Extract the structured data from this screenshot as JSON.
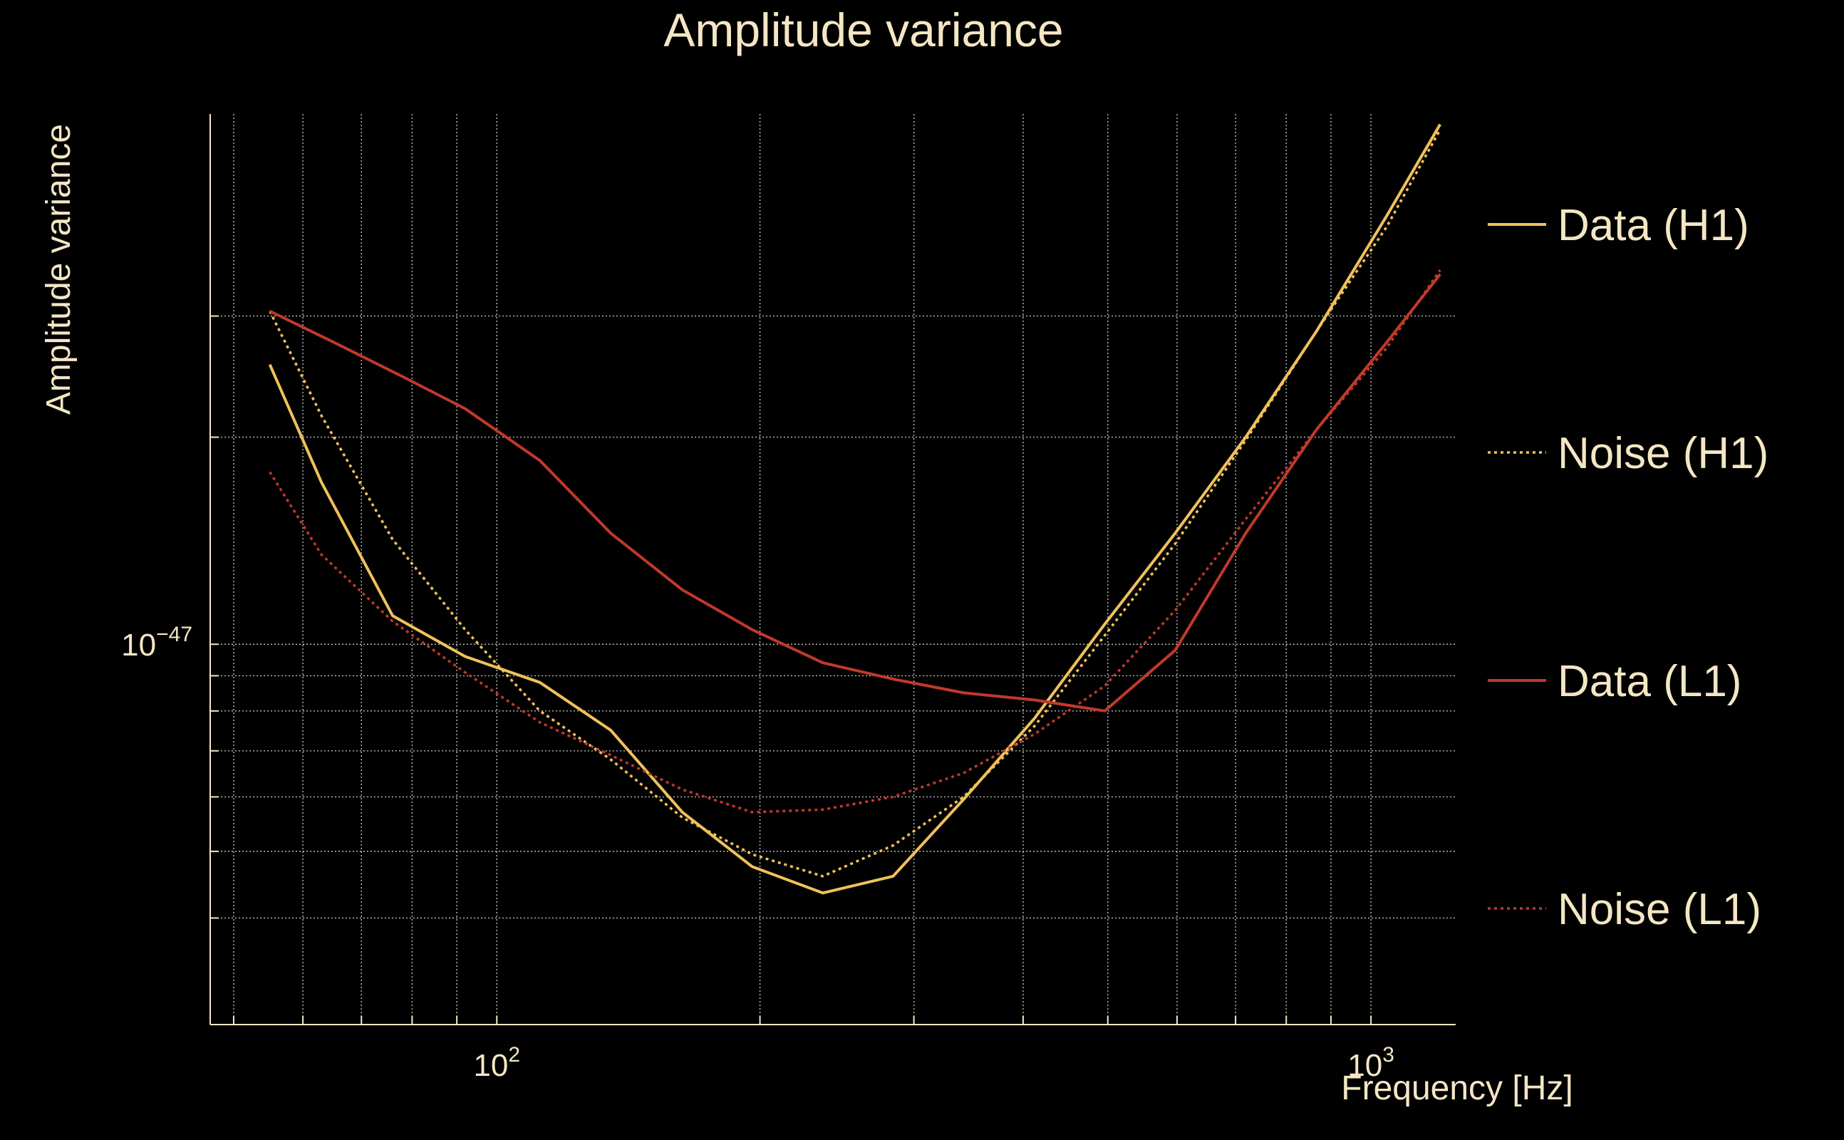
{
  "colors": {
    "background": "#000000",
    "text": "#f5e6c4",
    "grid": "#bdbdbd",
    "data_h1": "#f0c15a",
    "noise_h1": "#f0c15a",
    "data_l1": "#c0392b",
    "noise_l1": "#c0392b"
  },
  "chart_data": {
    "type": "line",
    "title": "Amplitude variance",
    "xlabel": "Frequency [Hz]",
    "ylabel": "Amplitude variance",
    "xscale": "log",
    "yscale": "log",
    "xlim": [
      47,
      1250
    ],
    "ylim": [
      2.8e-48,
      5.9e-47
    ],
    "grid": true,
    "legend_position": "right",
    "x_tick_labels": [
      {
        "value": 100,
        "base": "10",
        "exp": "2"
      },
      {
        "value": 1000,
        "base": "10",
        "exp": "3"
      }
    ],
    "y_tick_labels": [
      {
        "value": 1e-47,
        "base": "10",
        "exp": "−47"
      }
    ],
    "y_gridlines": [
      4e-48,
      5e-48,
      6e-48,
      7e-48,
      8e-48,
      9e-48,
      1e-47,
      2e-47,
      3e-47
    ],
    "x_gridlines": [
      50,
      60,
      70,
      80,
      90,
      100,
      200,
      300,
      400,
      500,
      600,
      700,
      800,
      900,
      1000
    ],
    "series": [
      {
        "name": "Data (H1)",
        "style": "solid",
        "color": "#f0c15a",
        "x": [
          55,
          63,
          76,
          92,
          112,
          135,
          163,
          196,
          236,
          284,
          342,
          412,
          496,
          597,
          719,
          866,
          1043,
          1200
        ],
        "y": [
          2.55e-47,
          1.72e-47,
          1.1e-47,
          9.6e-48,
          8.8e-48,
          7.5e-48,
          5.7e-48,
          4.75e-48,
          4.35e-48,
          4.6e-48,
          5.95e-48,
          7.8e-48,
          1.07e-47,
          1.45e-47,
          2e-47,
          2.85e-47,
          4.2e-47,
          5.7e-47
        ]
      },
      {
        "name": "Noise (H1)",
        "style": "dotted",
        "color": "#f0c15a",
        "x": [
          55,
          63,
          76,
          92,
          112,
          135,
          163,
          196,
          236,
          284,
          342,
          412,
          496,
          597,
          719,
          866,
          1043,
          1200
        ],
        "y": [
          3.05e-47,
          2.15e-47,
          1.42e-47,
          1.05e-47,
          8e-48,
          6.8e-48,
          5.6e-48,
          4.95e-48,
          4.6e-48,
          5.1e-48,
          6e-48,
          7.6e-48,
          1.03e-47,
          1.4e-47,
          1.98e-47,
          2.85e-47,
          4.05e-47,
          5.6e-47
        ]
      },
      {
        "name": "Data (L1)",
        "style": "solid",
        "color": "#c0392b",
        "x": [
          55,
          65,
          78,
          92,
          112,
          135,
          163,
          196,
          236,
          284,
          342,
          412,
          496,
          597,
          719,
          866,
          1043,
          1200
        ],
        "y": [
          3.05e-47,
          2.75e-47,
          2.45e-47,
          2.2e-47,
          1.85e-47,
          1.45e-47,
          1.2e-47,
          1.05e-47,
          9.4e-48,
          8.9e-48,
          8.5e-48,
          8.3e-48,
          8e-48,
          9.8e-48,
          1.45e-47,
          2.05e-47,
          2.75e-47,
          3.45e-47
        ]
      },
      {
        "name": "Noise (L1)",
        "style": "dotted",
        "color": "#c0392b",
        "x": [
          55,
          63,
          76,
          92,
          112,
          135,
          163,
          196,
          236,
          284,
          342,
          412,
          496,
          597,
          719,
          866,
          1043,
          1200
        ],
        "y": [
          1.78e-47,
          1.35e-47,
          1.08e-47,
          9.1e-48,
          7.7e-48,
          6.9e-48,
          6.15e-48,
          5.7e-48,
          5.75e-48,
          6e-48,
          6.5e-48,
          7.4e-48,
          8.7e-48,
          1.12e-47,
          1.52e-47,
          2.05e-47,
          2.7e-47,
          3.5e-47
        ]
      }
    ]
  }
}
